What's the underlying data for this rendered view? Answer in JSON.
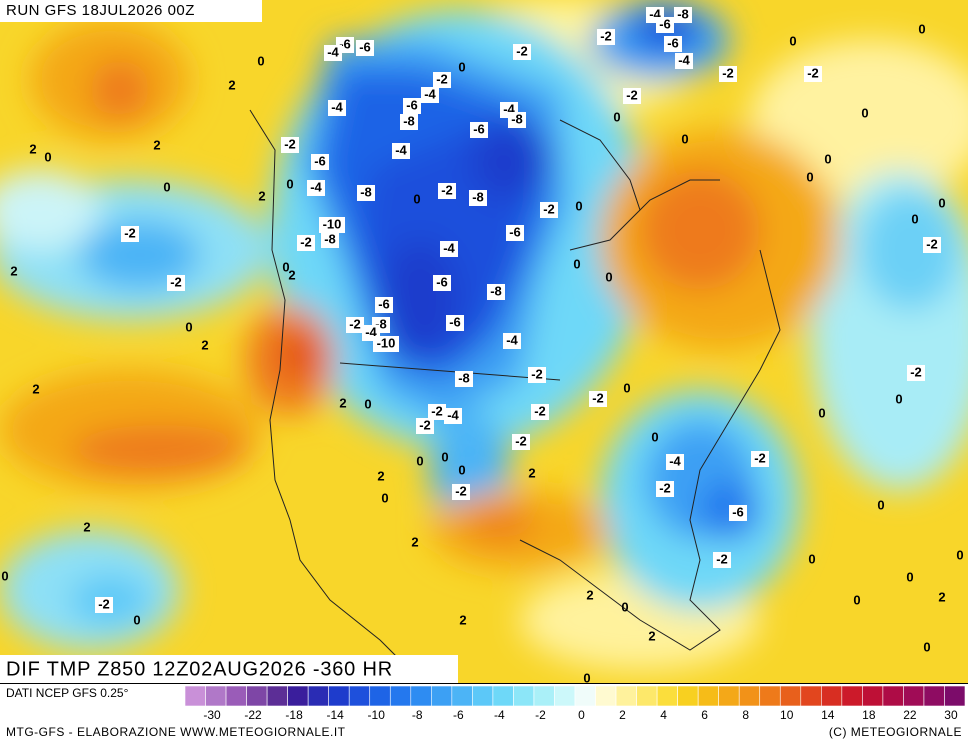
{
  "header": {
    "run": "RUN GFS 18JUL2026 00Z"
  },
  "map": {
    "title": "DIF TMP Z850 12Z02AUG2026 -360 HR",
    "contour_labels": [
      -4,
      -8,
      -6,
      -2,
      -6,
      -4,
      -2,
      -2,
      0,
      0,
      -6,
      -6,
      -4,
      -2,
      0,
      -2,
      -4,
      -6,
      -4,
      -8,
      -4,
      -8,
      -6,
      -2,
      0,
      0,
      0,
      2,
      0,
      -2,
      -6,
      -4,
      2,
      2,
      0,
      0,
      0,
      -4,
      -8,
      -2,
      0,
      -8,
      -2,
      0,
      2,
      -10,
      -8,
      -2,
      -6,
      -2,
      0,
      0,
      0,
      0,
      -2,
      -4,
      2,
      -2,
      0,
      2,
      0,
      0,
      -6,
      -8,
      -6,
      -2,
      -8,
      -4,
      -6,
      0,
      2,
      -10,
      -4,
      -8,
      -2,
      -2,
      2,
      0,
      -2,
      0,
      2,
      0,
      -2,
      -4,
      -2,
      -2,
      0,
      -2,
      0,
      -2,
      -4,
      0,
      0,
      0,
      2,
      2,
      -2,
      -2,
      0,
      0,
      -6,
      2,
      2,
      -2,
      0,
      0,
      0,
      0,
      2,
      -2,
      0,
      2,
      0,
      0,
      2,
      2,
      0,
      0
    ]
  },
  "legend": {
    "source": "DATI NCEP GFS 0.25°",
    "colors": [
      "#c990d8",
      "#b078c8",
      "#9a5cb8",
      "#7e46a6",
      "#5c2e96",
      "#3a1e9c",
      "#2a2cb4",
      "#1e3ccc",
      "#1e50dc",
      "#1e64e6",
      "#2478ee",
      "#2e8cf2",
      "#3ca0f4",
      "#4cb4f6",
      "#5cc8f8",
      "#6ed8f8",
      "#8ce6f8",
      "#aaf0f8",
      "#ccf8fa",
      "#f0fcfa",
      "#fffad0",
      "#fff29c",
      "#fde86a",
      "#fbde3c",
      "#f8d020",
      "#f6bc18",
      "#f4a818",
      "#f29218",
      "#ee7a1a",
      "#e8601c",
      "#e2461e",
      "#d82e22",
      "#cc1a2a",
      "#be1036",
      "#ae0c46",
      "#a00c56",
      "#8e0c62",
      "#7c0c6a"
    ],
    "ticks": [
      -30,
      -22,
      -18,
      -14,
      -10,
      -8,
      -6,
      -4,
      -2,
      0,
      2,
      4,
      6,
      8,
      10,
      14,
      18,
      22,
      30
    ]
  },
  "footer": {
    "left": "MTG-GFS - ELABORAZIONE WWW.METEOGIORNALE.IT",
    "right": "(C) METEOGIORNALE"
  }
}
